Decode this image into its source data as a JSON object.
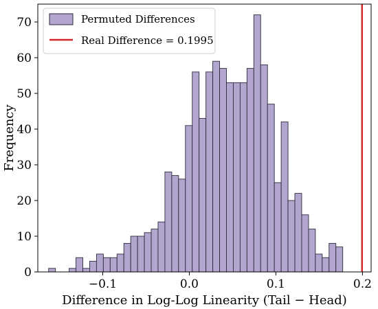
{
  "chart_data": {
    "type": "bar",
    "title": "",
    "xlabel": "Difference in Log-Log Linearity (Tail − Head)",
    "ylabel": "Frequency",
    "xlim": [
      -0.175,
      0.21
    ],
    "ylim": [
      0,
      75
    ],
    "xticks": [
      -0.1,
      0.0,
      0.1,
      0.2
    ],
    "xtick_labels": [
      "−0.1",
      "0.0",
      "0.1",
      "0.2"
    ],
    "yticks": [
      0,
      10,
      20,
      30,
      40,
      50,
      60,
      70
    ],
    "ytick_labels": [
      "0",
      "10",
      "20",
      "30",
      "40",
      "50",
      "60",
      "70"
    ],
    "grid": false,
    "legend_position": "top-left",
    "bins": {
      "start": -0.1625,
      "width": 0.0079,
      "counts": [
        1,
        0,
        0,
        1,
        4,
        1,
        3,
        5,
        4,
        4,
        5,
        8,
        10,
        10,
        11,
        12,
        14,
        28,
        27,
        26,
        41,
        56,
        43,
        56,
        59,
        57,
        53,
        53,
        53,
        57,
        72,
        58,
        47,
        25,
        42,
        20,
        22,
        16,
        12,
        5,
        4,
        8,
        7
      ]
    },
    "series": [
      {
        "name": "Permuted Differences",
        "kind": "histogram",
        "color": "#b2a6cf",
        "edge_color": "#2b2b3b"
      },
      {
        "name": "Real Difference = 0.1995",
        "kind": "vline",
        "x": 0.1995,
        "color": "#d62728"
      }
    ]
  }
}
